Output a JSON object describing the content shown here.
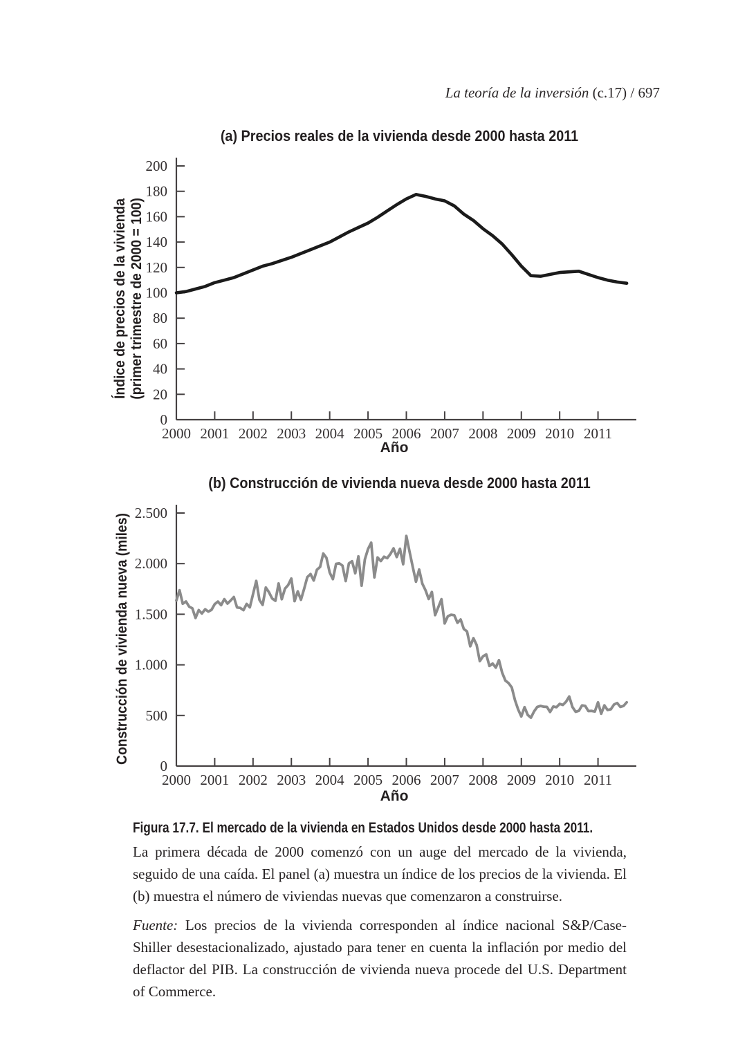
{
  "header": {
    "running_title": "La teoría de la inversión",
    "chapter_page": " (c.17) / 697"
  },
  "figure_caption": {
    "heading": "Figura 17.7. El mercado de la vivienda en Estados Unidos desde 2000 hasta 2011.",
    "body": "La primera década de 2000 comenzó con un auge del mercado de la vivienda, seguido de una caída. El panel (a) muestra un índice de los precios de la vivienda. El (b) muestra el número de viviendas nuevas que comenzaron a construirse.",
    "source_label": "Fuente:",
    "source_text": " Los precios de la vivienda corresponden al índice nacional S&P/Case-Shiller desestacionalizado, ajustado para tener en cuenta la inflación por medio del deflactor del PIB. La construcción de vivienda nueva procede del U.S. Department of Commerce."
  },
  "chart_data": [
    {
      "panel": "a",
      "type": "line",
      "title": "(a) Precios reales de la vivienda desde 2000 hasta 2011",
      "xlabel": "Año",
      "ylabel_line1": "Índice de precios de la vivienda",
      "ylabel_line2": "(primer trimestre de 2000 = 100)",
      "xlim": [
        2000,
        2012
      ],
      "ylim": [
        0,
        200
      ],
      "grid": false,
      "legend": "none",
      "axis_color": "#454142",
      "x_ticks": {
        "values": [
          2000,
          2001,
          2002,
          2003,
          2004,
          2005,
          2006,
          2007,
          2008,
          2009,
          2010,
          2011
        ],
        "labels": [
          "2000",
          "2001",
          "2002",
          "2003",
          "2004",
          "2005",
          "2006",
          "2007",
          "2008",
          "2009",
          "2010",
          "2011"
        ]
      },
      "y_ticks": {
        "values": [
          0,
          20,
          40,
          60,
          80,
          100,
          120,
          140,
          160,
          180,
          200
        ],
        "labels": [
          "0",
          "20",
          "40",
          "60",
          "80",
          "100",
          "120",
          "140",
          "160",
          "180",
          "200"
        ]
      },
      "series": {
        "name": "Índice de precios reales de la vivienda (trimestral)",
        "color": "#1b1b1b",
        "stroke_width": 4.6,
        "x_start_year": 2000.0,
        "x_step_years": 0.25,
        "values": [
          100,
          101,
          103,
          105,
          108,
          110,
          112,
          115,
          118,
          121,
          123,
          125.5,
          128,
          131,
          134,
          137,
          140,
          144,
          148,
          151.5,
          155,
          159.5,
          164.5,
          169.5,
          174,
          177.5,
          176,
          174,
          172.5,
          168.5,
          162,
          157,
          150.5,
          145,
          138.5,
          130,
          121,
          113.5,
          113,
          114.5,
          116,
          116.5,
          117,
          114.5,
          112,
          110,
          108.5,
          107.5
        ]
      }
    },
    {
      "panel": "b",
      "type": "line",
      "title": "(b) Construcción de vivienda nueva desde 2000 hasta 2011",
      "xlabel": "Año",
      "ylabel_line1": "Construcción de vivienda nueva (miles)",
      "ylabel_line2": "",
      "xlim": [
        2000,
        2012
      ],
      "ylim": [
        0,
        2500
      ],
      "grid": false,
      "legend": "none",
      "axis_color": "#454142",
      "x_ticks": {
        "values": [
          2000,
          2001,
          2002,
          2003,
          2004,
          2005,
          2006,
          2007,
          2008,
          2009,
          2010,
          2011
        ],
        "labels": [
          "2000",
          "2001",
          "2002",
          "2003",
          "2004",
          "2005",
          "2006",
          "2007",
          "2008",
          "2009",
          "2010",
          "2011"
        ]
      },
      "y_ticks": {
        "values": [
          0,
          500,
          1000,
          1500,
          2000,
          2500
        ],
        "labels": [
          "0",
          "500",
          "1.000",
          "1.500",
          "2.000",
          "2.500"
        ]
      },
      "series": {
        "name": "Viviendas nuevas iniciadas (mensual, miles)",
        "color": "#8b8b8b",
        "stroke_width": 3.8,
        "x_start_year": 2000.0,
        "x_step_years": 0.0833333,
        "values": [
          1636,
          1737,
          1604,
          1626,
          1575,
          1559,
          1463,
          1541,
          1507,
          1549,
          1526,
          1543,
          1600,
          1625,
          1590,
          1649,
          1605,
          1636,
          1670,
          1567,
          1562,
          1540,
          1602,
          1568,
          1698,
          1829,
          1642,
          1592,
          1764,
          1717,
          1655,
          1633,
          1804,
          1648,
          1753,
          1788,
          1853,
          1629,
          1726,
          1643,
          1751,
          1867,
          1897,
          1833,
          1939,
          1967,
          2100,
          2057,
          1911,
          1846,
          1998,
          2003,
          1981,
          1828,
          2002,
          2024,
          1905,
          2072,
          1782,
          2042,
          2144,
          2207,
          1864,
          2061,
          2025,
          2068,
          2054,
          2095,
          2151,
          2065,
          2147,
          1994,
          2273,
          2119,
          1969,
          1821,
          1942,
          1802,
          1737,
          1650,
          1720,
          1491,
          1570,
          1649,
          1409,
          1480,
          1495,
          1490,
          1415,
          1448,
          1354,
          1330,
          1183,
          1264,
          1197,
          1037,
          1084,
          1103,
          989,
          1013,
          973,
          1046,
          923,
          844,
          820,
          777,
          652,
          560,
          490,
          582,
          505,
          478,
          540,
          585,
          594,
          586,
          585,
          534,
          588,
          581,
          614,
          604,
          636,
          687,
          583,
          536,
          546,
          599,
          594,
          543,
          545,
          539,
          630,
          517,
          600,
          554,
          561,
          608,
          623,
          585,
          594,
          630
        ]
      }
    }
  ]
}
